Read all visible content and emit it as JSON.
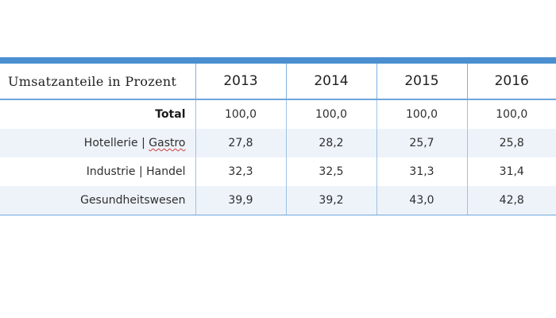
{
  "table": {
    "header": {
      "label": "Umsatzanteile in Prozent",
      "years": [
        "2013",
        "2014",
        "2015",
        "2016"
      ]
    },
    "rows": [
      {
        "label": "Total",
        "values": [
          "100,0",
          "100,0",
          "100,0",
          "100,0"
        ],
        "bold": true
      },
      {
        "label_part1": "Hotellerie | ",
        "label_part2": "Gastro",
        "values": [
          "27,8",
          "28,2",
          "25,7",
          "25,8"
        ]
      },
      {
        "label": "Industrie | Handel",
        "values": [
          "32,3",
          "32,5",
          "31,3",
          "31,4"
        ]
      },
      {
        "label": "Gesundheitswesen",
        "values": [
          "39,9",
          "39,2",
          "43,0",
          "42,8"
        ]
      }
    ],
    "colors": {
      "accent_bar": "#4a8fd0",
      "row_alt_bg": "#eef3fa",
      "grid_line": "#9cc3e6",
      "spellcheck_underline": "#d23c3c"
    }
  }
}
